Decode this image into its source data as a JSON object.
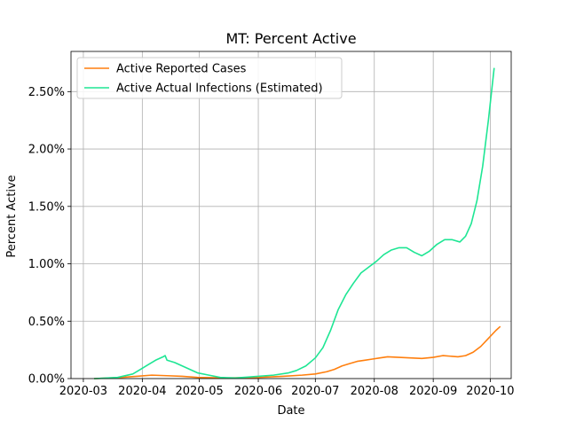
{
  "chart_data": {
    "type": "line",
    "title": "MT: Percent Active",
    "xlabel": "Date",
    "ylabel": "Percent Active",
    "grid": true,
    "legend_position": "top-left",
    "x_start": "2020-03-01",
    "xlim_days": [
      -6.5,
      225
    ],
    "ylim": [
      0,
      0.0285
    ],
    "x_ticks": [
      {
        "day": 0,
        "label": "2020-03"
      },
      {
        "day": 31,
        "label": "2020-04"
      },
      {
        "day": 61,
        "label": "2020-05"
      },
      {
        "day": 92,
        "label": "2020-06"
      },
      {
        "day": 122,
        "label": "2020-07"
      },
      {
        "day": 153,
        "label": "2020-08"
      },
      {
        "day": 184,
        "label": "2020-09"
      },
      {
        "day": 214,
        "label": "2020-10"
      }
    ],
    "y_ticks": [
      {
        "value": 0,
        "label": "0.00%"
      },
      {
        "value": 0.005,
        "label": "0.50%"
      },
      {
        "value": 0.01,
        "label": "1.00%"
      },
      {
        "value": 0.015,
        "label": "1.50%"
      },
      {
        "value": 0.02,
        "label": "2.00%"
      },
      {
        "value": 0.025,
        "label": "2.50%"
      }
    ],
    "series": [
      {
        "name": "Active Reported Cases",
        "color": "#ff7f0e",
        "points": [
          [
            6,
            0.0
          ],
          [
            20,
            0.0001
          ],
          [
            28,
            0.0002
          ],
          [
            36,
            0.0003
          ],
          [
            44,
            0.00025
          ],
          [
            52,
            0.0002
          ],
          [
            60,
            0.0001
          ],
          [
            75,
            5e-05
          ],
          [
            92,
            0.0001
          ],
          [
            105,
            0.0002
          ],
          [
            115,
            0.0003
          ],
          [
            122,
            0.0004
          ],
          [
            128,
            0.0006
          ],
          [
            132,
            0.0008
          ],
          [
            136,
            0.0011
          ],
          [
            140,
            0.0013
          ],
          [
            144,
            0.0015
          ],
          [
            148,
            0.0016
          ],
          [
            152,
            0.0017
          ],
          [
            156,
            0.0018
          ],
          [
            160,
            0.0019
          ],
          [
            166,
            0.00185
          ],
          [
            172,
            0.0018
          ],
          [
            178,
            0.00175
          ],
          [
            184,
            0.00185
          ],
          [
            189,
            0.002
          ],
          [
            193,
            0.00195
          ],
          [
            197,
            0.0019
          ],
          [
            201,
            0.002
          ],
          [
            205,
            0.0023
          ],
          [
            209,
            0.0028
          ],
          [
            213,
            0.0035
          ],
          [
            217,
            0.0042
          ],
          [
            219,
            0.0045
          ]
        ]
      },
      {
        "name": "Active Actual Infections (Estimated)",
        "color": "#1ee694",
        "points": [
          [
            6,
            0.0
          ],
          [
            18,
            0.0001
          ],
          [
            26,
            0.0004
          ],
          [
            30,
            0.0008
          ],
          [
            34,
            0.0012
          ],
          [
            38,
            0.0016
          ],
          [
            42,
            0.0019
          ],
          [
            43,
            0.002
          ],
          [
            44,
            0.0016
          ],
          [
            48,
            0.0014
          ],
          [
            52,
            0.0011
          ],
          [
            56,
            0.0008
          ],
          [
            60,
            0.0005
          ],
          [
            66,
            0.0003
          ],
          [
            72,
            0.0001
          ],
          [
            80,
            5e-05
          ],
          [
            92,
            0.0002
          ],
          [
            100,
            0.0003
          ],
          [
            108,
            0.0005
          ],
          [
            112,
            0.0007
          ],
          [
            117,
            0.0011
          ],
          [
            122,
            0.0018
          ],
          [
            126,
            0.0027
          ],
          [
            130,
            0.0042
          ],
          [
            134,
            0.006
          ],
          [
            138,
            0.0073
          ],
          [
            142,
            0.0083
          ],
          [
            146,
            0.0092
          ],
          [
            150,
            0.0097
          ],
          [
            154,
            0.0102
          ],
          [
            158,
            0.0108
          ],
          [
            162,
            0.0112
          ],
          [
            166,
            0.0114
          ],
          [
            170,
            0.0114
          ],
          [
            174,
            0.011
          ],
          [
            178,
            0.0107
          ],
          [
            182,
            0.0111
          ],
          [
            186,
            0.0117
          ],
          [
            190,
            0.0121
          ],
          [
            194,
            0.0121
          ],
          [
            198,
            0.0119
          ],
          [
            201,
            0.0124
          ],
          [
            204,
            0.0135
          ],
          [
            207,
            0.0155
          ],
          [
            210,
            0.0185
          ],
          [
            213,
            0.0225
          ],
          [
            216,
            0.027
          ]
        ]
      }
    ]
  }
}
